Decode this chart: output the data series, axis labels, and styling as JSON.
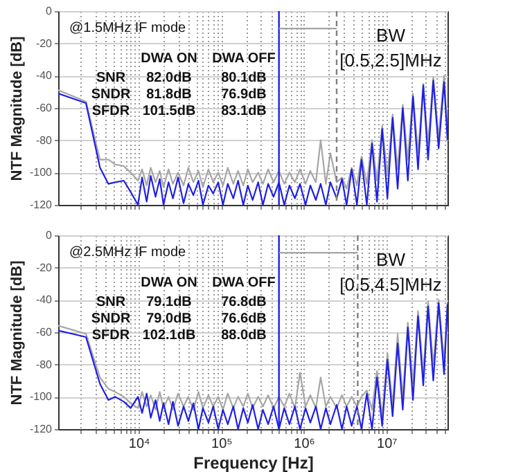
{
  "chart_data": [
    {
      "type": "line",
      "ylabel": "NTF Magnitude [dB]",
      "xlim": [
        1060,
        55000000
      ],
      "ylim": [
        -120,
        0
      ],
      "log": "x",
      "grid": true,
      "tick_labels": "y",
      "marker": "none",
      "line_style": "solid",
      "xticks": [
        {
          "value": 2000,
          "label": null
        },
        {
          "value": 3000,
          "label": null
        },
        {
          "value": 4000,
          "label": null
        },
        {
          "value": 5000,
          "label": null
        },
        {
          "value": 6000,
          "label": null
        },
        {
          "value": 7000,
          "label": null
        },
        {
          "value": 8000,
          "label": null
        },
        {
          "value": 9000,
          "label": null
        },
        {
          "value": 10000,
          "label": null
        },
        {
          "value": 20000,
          "label": null
        },
        {
          "value": 30000,
          "label": null
        },
        {
          "value": 40000,
          "label": null
        },
        {
          "value": 50000,
          "label": null
        },
        {
          "value": 60000,
          "label": null
        },
        {
          "value": 70000,
          "label": null
        },
        {
          "value": 80000,
          "label": null
        },
        {
          "value": 90000,
          "label": null
        },
        {
          "value": 100000,
          "label": null
        },
        {
          "value": 200000,
          "label": null
        },
        {
          "value": 300000,
          "label": null
        },
        {
          "value": 400000,
          "label": null
        },
        {
          "value": 500000,
          "label": null
        },
        {
          "value": 600000,
          "label": null
        },
        {
          "value": 700000,
          "label": null
        },
        {
          "value": 800000,
          "label": null
        },
        {
          "value": 900000,
          "label": null
        },
        {
          "value": 1000000,
          "label": null
        },
        {
          "value": 2000000,
          "label": null
        },
        {
          "value": 3000000,
          "label": null
        },
        {
          "value": 4000000,
          "label": null
        },
        {
          "value": 5000000,
          "label": null
        },
        {
          "value": 6000000,
          "label": null
        },
        {
          "value": 7000000,
          "label": null
        },
        {
          "value": 8000000,
          "label": null
        },
        {
          "value": 9000000,
          "label": null
        },
        {
          "value": 10000000,
          "label": null
        },
        {
          "value": 20000000,
          "label": null
        },
        {
          "value": 30000000,
          "label": null
        },
        {
          "value": 40000000,
          "label": null
        },
        {
          "value": 50000000,
          "label": null
        }
      ],
      "yticks": [
        -120,
        -100,
        -80,
        -60,
        -40,
        -20,
        0
      ],
      "x": [
        1060,
        2300,
        3400,
        4300,
        5200,
        6600,
        8000,
        9800,
        11000,
        12500,
        14000,
        16000,
        18000,
        20000,
        23000,
        26000,
        30000,
        35000,
        40000,
        46000,
        53000,
        60000,
        70000,
        80000,
        92000,
        105000,
        120000,
        140000,
        160000,
        185000,
        210000,
        240000,
        280000,
        320000,
        370000,
        430000,
        500000,
        580000,
        670000,
        780000,
        900000,
        1050000,
        1200000,
        1400000,
        1600000,
        1850000,
        2100000,
        2500000,
        2900000,
        3300000,
        3800000,
        4400000,
        5000000,
        5800000,
        6700000,
        7700000,
        8900000,
        10300000,
        11900000,
        13700000,
        15800000,
        18200000,
        21000000,
        24200000,
        28000000,
        32000000,
        37000000,
        43000000,
        50000000,
        55000000
      ],
      "series": [
        {
          "color": "#a6a6a6",
          "values": [
            -49,
            -56,
            -92,
            -92,
            -95,
            -96,
            -100,
            -105,
            -98,
            -108,
            -97,
            -106,
            -99,
            -109,
            -98,
            -107,
            -100,
            -108,
            -97,
            -106,
            -99,
            -109,
            -98,
            -106,
            -100,
            -108,
            -97,
            -107,
            -99,
            -108,
            -98,
            -106,
            -100,
            -107,
            -98,
            -106,
            -99,
            -107,
            -100,
            -106,
            -98,
            -107,
            -99,
            -106,
            -80,
            -107,
            -88,
            -106,
            -103,
            -110,
            -97,
            -108,
            -90,
            -107,
            -80,
            -105,
            -71,
            -102,
            -64,
            -98,
            -58,
            -92,
            -51,
            -88,
            -45,
            -82,
            -41,
            -78,
            -40,
            -75
          ]
        },
        {
          "color": "#1f1fe6",
          "values": [
            -51,
            -57,
            -97,
            -107,
            -106,
            -105,
            -112,
            -120,
            -103,
            -118,
            -102,
            -115,
            -104,
            -120,
            -106,
            -116,
            -103,
            -119,
            -107,
            -114,
            -105,
            -120,
            -108,
            -113,
            -106,
            -120,
            -107,
            -116,
            -105,
            -120,
            -108,
            -117,
            -106,
            -120,
            -107,
            -115,
            -106,
            -120,
            -108,
            -116,
            -107,
            -120,
            -108,
            -117,
            -107,
            -120,
            -106,
            -116,
            -104,
            -120,
            -98,
            -120,
            -92,
            -120,
            -82,
            -118,
            -73,
            -116,
            -66,
            -110,
            -60,
            -105,
            -53,
            -98,
            -46,
            -92,
            -43,
            -85,
            -44,
            -80
          ]
        }
      ],
      "ref_lines": [
        {
          "axis": "x",
          "value": 500000,
          "color": "#1f1fe6",
          "line_style": "solid"
        },
        {
          "axis": "x",
          "value": 2500000,
          "color": "#808080",
          "line_style": "dashed"
        }
      ],
      "annotations": [
        "@1.5MHz IF mode",
        "DWA ON",
        "DWA OFF",
        "SNR",
        "82.0dB",
        "80.1dB",
        "SNDR",
        "81.8dB",
        "76.9dB",
        "SFDR",
        "101.5dB",
        "83.1dB",
        "BW",
        "[0.5,2.5]MHz"
      ]
    },
    {
      "type": "line",
      "xlabel": "Frequency [Hz]",
      "ylabel": "NTF Magnitude [dB]",
      "xlim": [
        1060,
        55000000
      ],
      "ylim": [
        -120,
        0
      ],
      "log": "x",
      "grid": true,
      "marker": "none",
      "line_style": "solid",
      "xticks": [
        {
          "value": 2000,
          "label": null
        },
        {
          "value": 3000,
          "label": null
        },
        {
          "value": 4000,
          "label": null
        },
        {
          "value": 5000,
          "label": null
        },
        {
          "value": 6000,
          "label": null
        },
        {
          "value": 7000,
          "label": null
        },
        {
          "value": 8000,
          "label": null
        },
        {
          "value": 9000,
          "label": null
        },
        {
          "value": 10000,
          "label": "10⁴"
        },
        {
          "value": 20000,
          "label": null
        },
        {
          "value": 30000,
          "label": null
        },
        {
          "value": 40000,
          "label": null
        },
        {
          "value": 50000,
          "label": null
        },
        {
          "value": 60000,
          "label": null
        },
        {
          "value": 70000,
          "label": null
        },
        {
          "value": 80000,
          "label": null
        },
        {
          "value": 90000,
          "label": null
        },
        {
          "value": 100000,
          "label": "10⁵"
        },
        {
          "value": 200000,
          "label": null
        },
        {
          "value": 300000,
          "label": null
        },
        {
          "value": 400000,
          "label": null
        },
        {
          "value": 500000,
          "label": null
        },
        {
          "value": 600000,
          "label": null
        },
        {
          "value": 700000,
          "label": null
        },
        {
          "value": 800000,
          "label": null
        },
        {
          "value": 900000,
          "label": null
        },
        {
          "value": 1000000,
          "label": "10⁶"
        },
        {
          "value": 2000000,
          "label": null
        },
        {
          "value": 3000000,
          "label": null
        },
        {
          "value": 4000000,
          "label": null
        },
        {
          "value": 5000000,
          "label": null
        },
        {
          "value": 6000000,
          "label": null
        },
        {
          "value": 7000000,
          "label": null
        },
        {
          "value": 8000000,
          "label": null
        },
        {
          "value": 9000000,
          "label": null
        },
        {
          "value": 10000000,
          "label": "10⁷"
        },
        {
          "value": 20000000,
          "label": null
        },
        {
          "value": 30000000,
          "label": null
        },
        {
          "value": 40000000,
          "label": null
        },
        {
          "value": 50000000,
          "label": null
        }
      ],
      "yticks": [
        -120,
        -100,
        -80,
        -60,
        -40,
        -20,
        0
      ],
      "x": [
        1060,
        2300,
        3400,
        4300,
        5200,
        6600,
        8000,
        9800,
        11000,
        12500,
        14000,
        16000,
        18000,
        20000,
        23000,
        26000,
        30000,
        35000,
        40000,
        46000,
        53000,
        60000,
        70000,
        80000,
        92000,
        105000,
        120000,
        140000,
        160000,
        185000,
        210000,
        240000,
        280000,
        320000,
        370000,
        430000,
        500000,
        580000,
        670000,
        780000,
        900000,
        1050000,
        1200000,
        1400000,
        1600000,
        1850000,
        2100000,
        2500000,
        2900000,
        3300000,
        3800000,
        4400000,
        5000000,
        5800000,
        6700000,
        7700000,
        8900000,
        10300000,
        11900000,
        13700000,
        15800000,
        18200000,
        21000000,
        24200000,
        28000000,
        32000000,
        37000000,
        43000000,
        50000000,
        55000000
      ],
      "series": [
        {
          "color": "#a6a6a6",
          "values": [
            -56,
            -61,
            -88,
            -95,
            -97,
            -100,
            -104,
            -107,
            -97,
            -106,
            -99,
            -108,
            -97,
            -107,
            -100,
            -108,
            -98,
            -106,
            -100,
            -108,
            -97,
            -107,
            -99,
            -106,
            -100,
            -108,
            -98,
            -107,
            -100,
            -106,
            -98,
            -107,
            -100,
            -106,
            -99,
            -107,
            -100,
            -106,
            -98,
            -107,
            -85,
            -106,
            -99,
            -107,
            -88,
            -106,
            -100,
            -107,
            -99,
            -106,
            -100,
            -106,
            -100,
            -96,
            -108,
            -84,
            -112,
            -73,
            -105,
            -61,
            -100,
            -54,
            -92,
            -47,
            -85,
            -41,
            -80,
            -40,
            -78,
            -42
          ]
        },
        {
          "color": "#1f1fe6",
          "values": [
            -59,
            -63,
            -92,
            -102,
            -100,
            -103,
            -107,
            -100,
            -110,
            -98,
            -113,
            -102,
            -115,
            -104,
            -117,
            -103,
            -118,
            -106,
            -115,
            -104,
            -120,
            -107,
            -116,
            -106,
            -120,
            -108,
            -117,
            -106,
            -120,
            -107,
            -116,
            -105,
            -120,
            -108,
            -117,
            -106,
            -120,
            -107,
            -117,
            -106,
            -120,
            -107,
            -116,
            -106,
            -120,
            -107,
            -117,
            -105,
            -120,
            -106,
            -118,
            -106,
            -120,
            -98,
            -120,
            -88,
            -118,
            -77,
            -112,
            -67,
            -108,
            -57,
            -102,
            -50,
            -93,
            -44,
            -90,
            -42,
            -86,
            -43
          ]
        }
      ],
      "ref_lines": [
        {
          "axis": "x",
          "value": 500000,
          "color": "#1f1fe6",
          "line_style": "solid"
        },
        {
          "axis": "x",
          "value": 4500000,
          "color": "#808080",
          "line_style": "dashed"
        }
      ],
      "annotations": [
        "@2.5MHz IF mode",
        "DWA ON",
        "DWA OFF",
        "SNR",
        "79.1dB",
        "76.8dB",
        "SNDR",
        "79.0dB",
        "76.6dB",
        "SFDR",
        "102.1dB",
        "88.0dB",
        "BW",
        "[0.5,4.5]MHz"
      ]
    }
  ]
}
